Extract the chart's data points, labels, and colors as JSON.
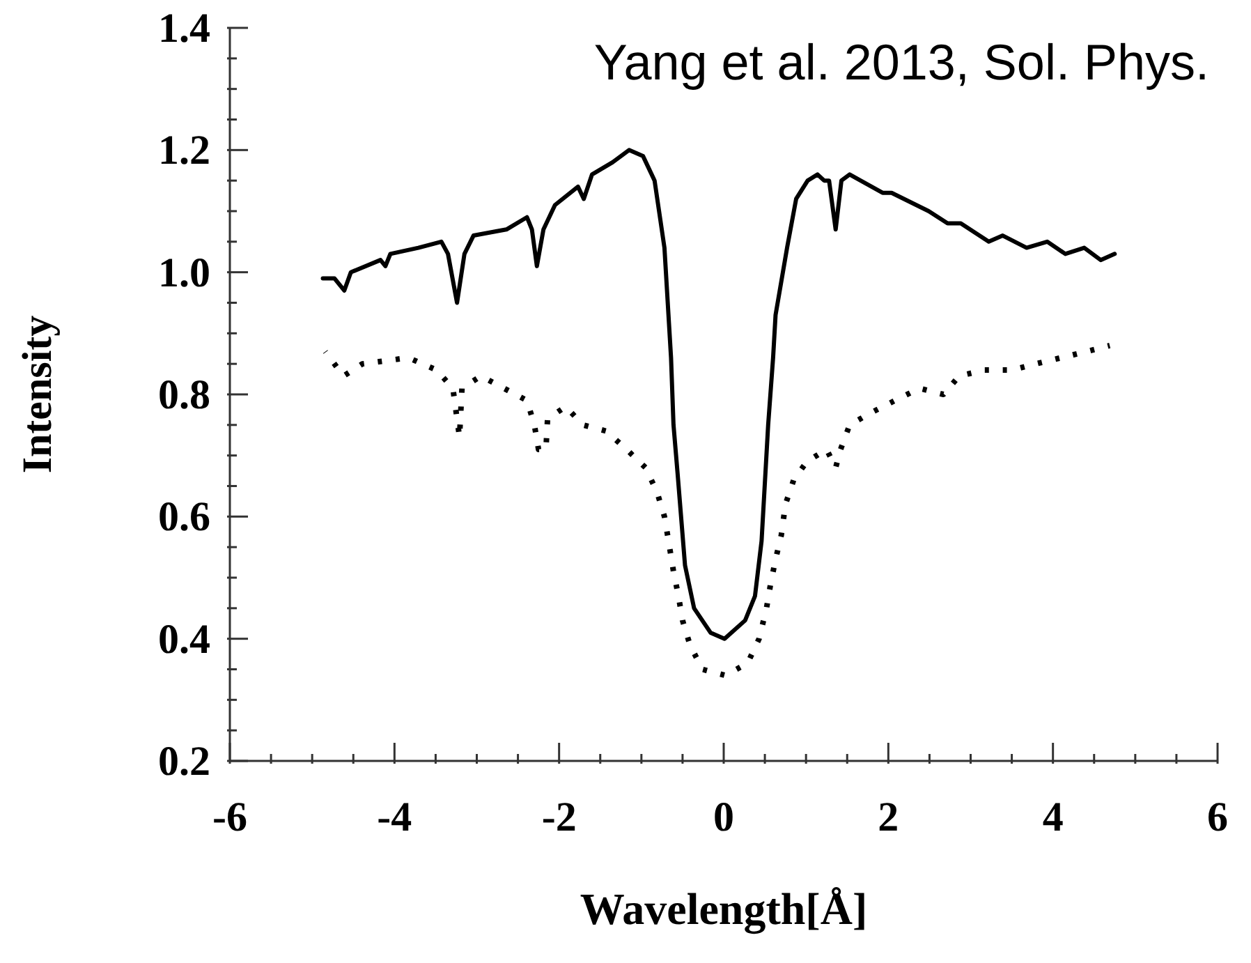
{
  "chart_data": {
    "type": "line",
    "xlabel": "Wavelength[Å]",
    "ylabel": "Intensity",
    "annotations": [
      "Yang et al. 2013, Sol. Phys."
    ],
    "xlim": [
      -6,
      6
    ],
    "ylim": [
      0.2,
      1.4
    ],
    "xticks": [
      -6,
      {
        "value": -5.5,
        "label": null
      },
      {
        "value": -5,
        "label": null
      },
      {
        "value": -4.5,
        "label": null
      },
      -4,
      {
        "value": -3.5,
        "label": null
      },
      {
        "value": -3,
        "label": null
      },
      {
        "value": -2.5,
        "label": null
      },
      -2,
      {
        "value": -1.5,
        "label": null
      },
      {
        "value": -1,
        "label": null
      },
      {
        "value": -0.5,
        "label": null
      },
      0,
      {
        "value": 0.5,
        "label": null
      },
      {
        "value": 1,
        "label": null
      },
      {
        "value": 1.5,
        "label": null
      },
      2,
      {
        "value": 2.5,
        "label": null
      },
      {
        "value": 3,
        "label": null
      },
      {
        "value": 3.5,
        "label": null
      },
      4,
      {
        "value": 4.5,
        "label": null
      },
      {
        "value": 5,
        "label": null
      },
      {
        "value": 5.5,
        "label": null
      },
      6
    ],
    "yticks": [
      {
        "value": 0.2,
        "label": "0.2"
      },
      {
        "value": 0.25,
        "label": null
      },
      {
        "value": 0.3,
        "label": null
      },
      {
        "value": 0.35,
        "label": null
      },
      {
        "value": 0.4,
        "label": "0.4"
      },
      {
        "value": 0.45,
        "label": null
      },
      {
        "value": 0.5,
        "label": null
      },
      {
        "value": 0.55,
        "label": null
      },
      {
        "value": 0.6,
        "label": "0.6"
      },
      {
        "value": 0.65,
        "label": null
      },
      {
        "value": 0.7,
        "label": null
      },
      {
        "value": 0.75,
        "label": null
      },
      {
        "value": 0.8,
        "label": "0.8"
      },
      {
        "value": 0.85,
        "label": null
      },
      {
        "value": 0.9,
        "label": null
      },
      {
        "value": 0.95,
        "label": null
      },
      {
        "value": 1.0,
        "label": "1.0"
      },
      {
        "value": 1.05,
        "label": null
      },
      {
        "value": 1.1,
        "label": null
      },
      {
        "value": 1.15,
        "label": null
      },
      {
        "value": 1.2,
        "label": "1.2"
      },
      {
        "value": 1.25,
        "label": null
      },
      {
        "value": 1.3,
        "label": null
      },
      {
        "value": 1.35,
        "label": null
      },
      {
        "value": 1.4,
        "label": "1.4"
      }
    ],
    "grid": false,
    "legend": false,
    "marker": "none",
    "series": [
      {
        "color": "#000000",
        "line_style": "solid",
        "x": [
          -4.87,
          -4.73,
          -4.61,
          -4.53,
          -4.17,
          -4.11,
          -4.05,
          -3.71,
          -3.43,
          -3.35,
          -3.24,
          -3.15,
          -3.04,
          -2.64,
          -2.39,
          -2.33,
          -2.27,
          -2.19,
          -2.05,
          -1.77,
          -1.7,
          -1.6,
          -1.35,
          -1.15,
          -0.98,
          -0.84,
          -0.72,
          -0.64,
          -0.61,
          -0.56,
          -0.47,
          -0.36,
          -0.16,
          0.01,
          0.26,
          0.38,
          0.46,
          0.54,
          0.6,
          0.63,
          0.77,
          0.88,
          1.02,
          1.14,
          1.22,
          1.28,
          1.36,
          1.43,
          1.53,
          1.93,
          2.04,
          2.49,
          2.72,
          2.88,
          3.22,
          3.39,
          3.68,
          3.93,
          4.15,
          4.38,
          4.58,
          4.75
        ],
        "values": [
          0.99,
          0.99,
          0.97,
          1.0,
          1.02,
          1.01,
          1.03,
          1.04,
          1.05,
          1.03,
          0.95,
          1.03,
          1.06,
          1.07,
          1.09,
          1.07,
          1.01,
          1.07,
          1.11,
          1.14,
          1.12,
          1.16,
          1.18,
          1.2,
          1.19,
          1.15,
          1.04,
          0.86,
          0.75,
          0.67,
          0.52,
          0.45,
          0.41,
          0.4,
          0.43,
          0.47,
          0.56,
          0.75,
          0.86,
          0.93,
          1.04,
          1.12,
          1.15,
          1.16,
          1.15,
          1.15,
          1.07,
          1.15,
          1.16,
          1.13,
          1.13,
          1.1,
          1.08,
          1.08,
          1.05,
          1.06,
          1.04,
          1.05,
          1.03,
          1.04,
          1.02,
          1.03
        ]
      },
      {
        "color": "#000000",
        "line_style": "dotted",
        "x": [
          -4.84,
          -4.62,
          -4.39,
          -3.83,
          -3.49,
          -3.29,
          -3.21,
          -3.18,
          -2.95,
          -2.67,
          -2.39,
          -2.3,
          -2.25,
          -2.16,
          -2.14,
          -1.92,
          -1.71,
          -1.43,
          -1.18,
          -0.95,
          -0.81,
          -0.72,
          -0.67,
          -0.61,
          -0.55,
          -0.5,
          -0.41,
          -0.26,
          0.02,
          0.29,
          0.43,
          0.52,
          0.57,
          0.63,
          0.7,
          0.75,
          0.85,
          1.01,
          1.25,
          1.36,
          1.42,
          1.53,
          1.79,
          2.08,
          2.38,
          2.67,
          2.86,
          3.17,
          3.51,
          3.79,
          4.1,
          4.4,
          4.69
        ],
        "values": [
          0.87,
          0.83,
          0.85,
          0.86,
          0.84,
          0.81,
          0.73,
          0.81,
          0.83,
          0.81,
          0.79,
          0.75,
          0.71,
          0.71,
          0.76,
          0.78,
          0.75,
          0.74,
          0.71,
          0.68,
          0.64,
          0.6,
          0.56,
          0.51,
          0.47,
          0.43,
          0.39,
          0.35,
          0.34,
          0.36,
          0.4,
          0.45,
          0.49,
          0.53,
          0.57,
          0.62,
          0.66,
          0.69,
          0.71,
          0.68,
          0.71,
          0.75,
          0.77,
          0.79,
          0.81,
          0.8,
          0.83,
          0.84,
          0.84,
          0.85,
          0.86,
          0.87,
          0.88
        ]
      }
    ]
  }
}
